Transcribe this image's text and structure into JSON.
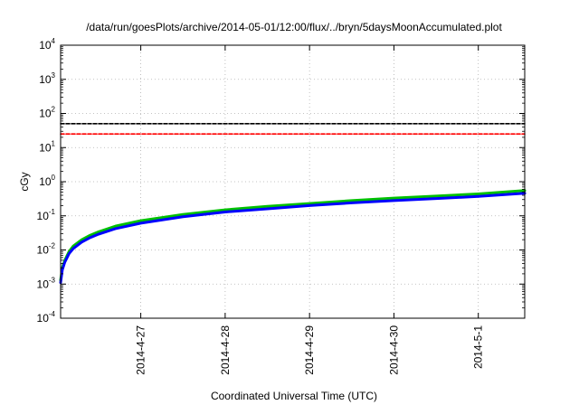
{
  "chart_data": {
    "type": "line",
    "title": "/data/run/goesPlots/archive/2014-05-01/12:00/flux/../bryn/5daysMoonAccumulated.plot",
    "xlabel": "Coordinated Universal Time (UTC)",
    "ylabel": "cGy",
    "y_scale": "log",
    "ylim": [
      0.0001,
      10000
    ],
    "y_ticks": [
      {
        "base": "10",
        "exp": "-4"
      },
      {
        "base": "10",
        "exp": "-3"
      },
      {
        "base": "10",
        "exp": "-2"
      },
      {
        "base": "10",
        "exp": "-1"
      },
      {
        "base": "10",
        "exp": "0"
      },
      {
        "base": "10",
        "exp": "1"
      },
      {
        "base": "10",
        "exp": "2"
      },
      {
        "base": "10",
        "exp": "3"
      },
      {
        "base": "10",
        "exp": "4"
      }
    ],
    "x_ticks": [
      "2014-4-27",
      "2014-4-28",
      "2014-4-29",
      "2014-4-30",
      "2014-5-1"
    ],
    "xlim_days": [
      -0.95,
      4.55
    ],
    "grid": true,
    "series": [
      {
        "color": "#00c000",
        "x": [
          -0.95,
          -0.93,
          -0.9,
          -0.85,
          -0.8,
          -0.7,
          -0.6,
          -0.5,
          -0.3,
          0,
          0.5,
          1,
          1.5,
          2,
          2.5,
          3,
          3.5,
          4,
          4.55
        ],
        "values": [
          0.0013,
          0.003,
          0.005,
          0.009,
          0.013,
          0.02,
          0.027,
          0.034,
          0.05,
          0.072,
          0.11,
          0.15,
          0.19,
          0.23,
          0.28,
          0.33,
          0.38,
          0.44,
          0.55
        ]
      },
      {
        "color": "#0000ff",
        "x": [
          -0.95,
          -0.93,
          -0.9,
          -0.85,
          -0.8,
          -0.7,
          -0.6,
          -0.5,
          -0.3,
          0,
          0.5,
          1,
          1.5,
          2,
          2.5,
          3,
          3.5,
          4,
          4.55
        ],
        "values": [
          0.0011,
          0.0026,
          0.0044,
          0.0078,
          0.011,
          0.017,
          0.023,
          0.029,
          0.042,
          0.061,
          0.094,
          0.13,
          0.16,
          0.2,
          0.24,
          0.28,
          0.32,
          0.37,
          0.46
        ]
      },
      {
        "color": "#000000",
        "x": [
          -0.95,
          4.55
        ],
        "values": [
          50,
          50
        ]
      },
      {
        "color": "#ff0000",
        "x": [
          -0.95,
          4.55
        ],
        "values": [
          25,
          25
        ]
      }
    ]
  }
}
